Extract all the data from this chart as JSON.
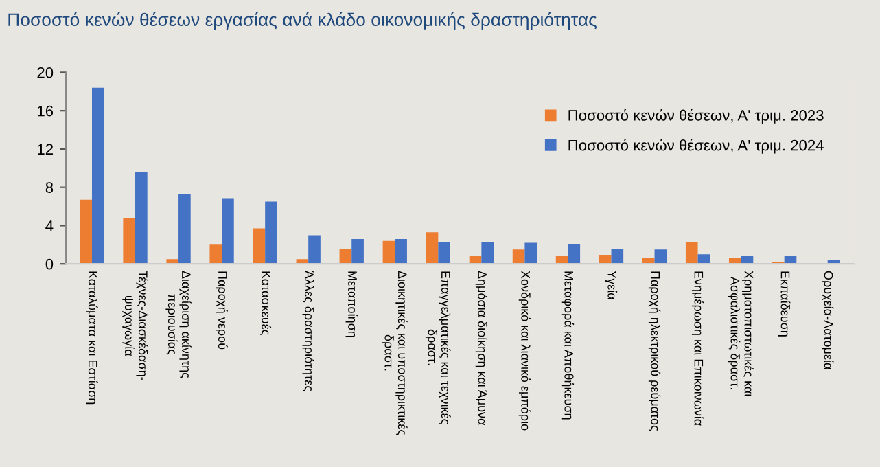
{
  "chart_data": {
    "type": "bar",
    "title": "Ποσοστό κενών θέσεων εργασίας ανά κλάδο οικονομικής δραστηριότητας",
    "categories": [
      "Καταλύματα και Εστίαση",
      "Τέχνες-Διασκέδαση-\nψυχαγωγία",
      "Διαχείριση ακίνητης\nπεριουσίας",
      "Παροχή νερού",
      "Κατασκευές",
      "Άλλες δραστηριότητες",
      "Μεταποίηση",
      "Διοικητικές και υποστηρικτικές\nδραστ.",
      "Επαγγελματικές και τεχνικές\nδραστ.",
      "Δημόσια διοίκηση και Άμυνα",
      "Χονδρικό και λιανικό εμπόριο",
      "Μεταφορά και Αποθήκευση",
      "Υγεία",
      "Παροχή ηλεκτρικού ρεύματος",
      "Ενημέρωση και Επικοινωνία",
      "Χρηματοπιστωτικές και\nΑσφαλιστικές δραστ.",
      "Εκπαίδευση",
      "Ορυχεία-Λατομεία"
    ],
    "series": [
      {
        "name": "Ποσοστό κενών θέσεων, Α' τριμ. 2023",
        "color": "#ed7d31",
        "values": [
          6.7,
          4.8,
          0.5,
          2.0,
          3.7,
          0.5,
          1.6,
          2.4,
          3.3,
          0.8,
          1.5,
          0.8,
          0.9,
          0.6,
          2.3,
          0.6,
          0.2,
          0
        ]
      },
      {
        "name": "Ποσοστό κενών θέσεων, Α' τριμ. 2024",
        "color": "#4472c4",
        "values": [
          18.4,
          9.6,
          7.3,
          6.8,
          6.5,
          3.0,
          2.6,
          2.6,
          2.3,
          2.3,
          2.2,
          2.1,
          1.6,
          1.5,
          1.0,
          0.8,
          0.8,
          0.4
        ]
      }
    ],
    "ylim": [
      0,
      20
    ],
    "yticks": [
      0,
      4,
      8,
      12,
      16,
      20
    ],
    "grid": false,
    "legend": "top right"
  }
}
